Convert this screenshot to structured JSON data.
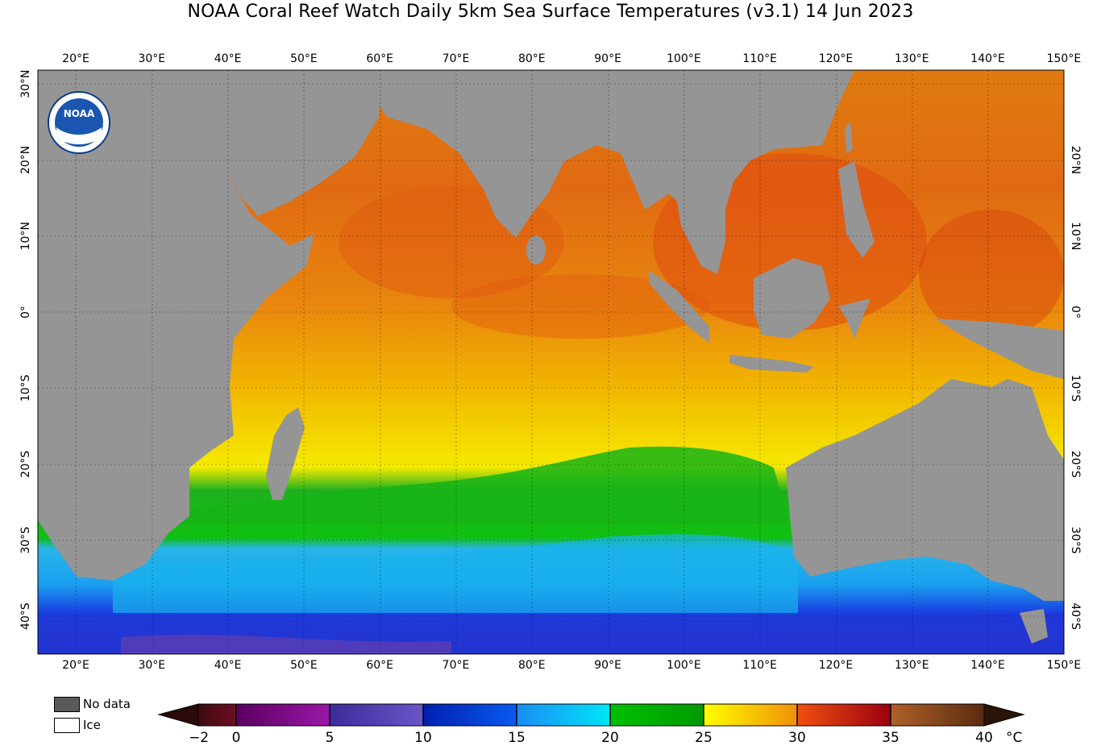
{
  "title": "NOAA Coral Reef Watch Daily 5km Sea Surface Temperatures  (v3.1)   14 Jun 2023",
  "logo_text": "NOAA",
  "lon_ticks": [
    "20°E",
    "30°E",
    "40°E",
    "50°E",
    "60°E",
    "70°E",
    "80°E",
    "90°E",
    "100°E",
    "110°E",
    "120°E",
    "130°E",
    "140°E",
    "150°E"
  ],
  "lat_ticks_left": [
    "30°N",
    "20°N",
    "10°N",
    "0°",
    "10°S",
    "20°S",
    "30°S",
    "40°S"
  ],
  "lat_ticks_right": [
    "20°N",
    "10°N",
    "0°",
    "10°S",
    "20°S",
    "30°S",
    "40°S"
  ],
  "legend": {
    "no_data": "No data",
    "ice": "Ice"
  },
  "colorbar": {
    "labels": [
      "−2",
      "0",
      "5",
      "10",
      "15",
      "20",
      "25",
      "30",
      "35",
      "40"
    ],
    "unit": "°C",
    "range": [
      -2,
      40
    ]
  },
  "colors": {
    "land": "#959595",
    "no_data": "#5a5a5a",
    "ice": "#ffffff"
  }
}
